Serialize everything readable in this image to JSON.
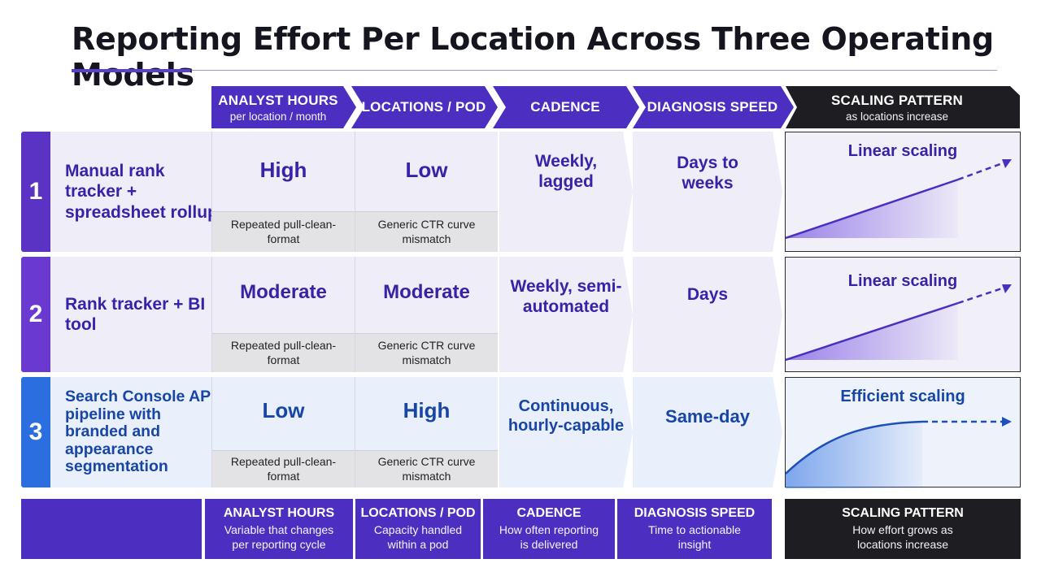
{
  "title": "Reporting Effort Per Location Across Three Operating Models",
  "columns": [
    {
      "main": "ANALYST HOURS",
      "sub": "per location / month"
    },
    {
      "main": "LOCATIONS / POD",
      "sub": ""
    },
    {
      "main": "CADENCE",
      "sub": ""
    },
    {
      "main": "DIAGNOSIS SPEED",
      "sub": ""
    },
    {
      "main": "SCALING PATTERN",
      "sub": "as locations increase"
    }
  ],
  "rows": [
    {
      "number": "1",
      "label": "Manual rank tracker + spreadsheet rollup",
      "analyst_hours": "High",
      "analyst_hours_note": "Repeated pull-clean-format",
      "locations_pod": "Low",
      "locations_pod_note": "Generic CTR curve mismatch",
      "cadence": "Weekly, lagged",
      "diagnosis_speed": "Days to weeks",
      "scaling": "Linear scaling"
    },
    {
      "number": "2",
      "label": "Rank tracker + BI tool",
      "analyst_hours": "Moderate",
      "analyst_hours_note": "Repeated pull-clean-format",
      "locations_pod": "Moderate",
      "locations_pod_note": "Generic CTR curve mismatch",
      "cadence": "Weekly, semi-automated",
      "diagnosis_speed": "Days",
      "scaling": "Linear scaling"
    },
    {
      "number": "3",
      "label": "Search Console API pipeline with branded and appearance segmentation",
      "analyst_hours": "Low",
      "analyst_hours_note": "Repeated pull-clean-format",
      "locations_pod": "High",
      "locations_pod_note": "Generic CTR curve mismatch",
      "cadence": "Continuous, hourly-capable",
      "diagnosis_speed": "Same-day",
      "scaling": "Efficient scaling"
    }
  ],
  "legend": [
    {
      "main": "ANALYST HOURS",
      "sub": "Variable that changes per reporting cycle"
    },
    {
      "main": "LOCATIONS / POD",
      "sub": "Capacity handled within a pod"
    },
    {
      "main": "CADENCE",
      "sub": "How often reporting is delivered"
    },
    {
      "main": "DIAGNOSIS SPEED",
      "sub": "Time to actionable insight"
    },
    {
      "main": "SCALING PATTERN",
      "sub": "How effort grows as locations increase"
    }
  ],
  "colors": {
    "purple": "#4c2fc0",
    "dark": "#1d1d22",
    "blue": "#1f5fd6"
  }
}
